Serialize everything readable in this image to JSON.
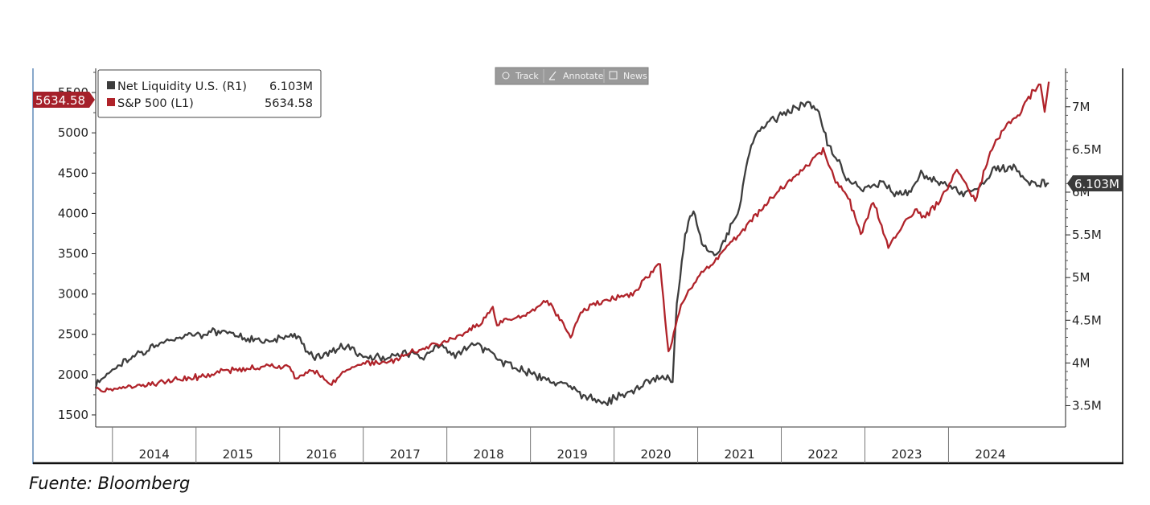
{
  "source_text": "Fuente: Bloomberg",
  "toolbar": {
    "track": "Track",
    "annotate": "Annotate",
    "news": "News"
  },
  "flags": {
    "left_value": "5634.58",
    "right_value": "6.103M"
  },
  "colors": {
    "liquidity": "#3d3d3d",
    "spx": "#b0232a",
    "axis": "#2a2a2a"
  },
  "chart_data": {
    "type": "line",
    "grid": false,
    "legend_position": "top-left",
    "x_axis": {
      "tick_labels": [
        "2014",
        "2015",
        "2016",
        "2017",
        "2018",
        "2019",
        "2020",
        "2021",
        "2022",
        "2023",
        "2024"
      ],
      "range": [
        2013.3,
        2024.9
      ]
    },
    "y_left": {
      "tick_labels": [
        "1500",
        "2000",
        "2500",
        "3000",
        "3500",
        "4000",
        "4500",
        "5000",
        "5500"
      ],
      "range": [
        1350,
        5800
      ]
    },
    "y_right": {
      "tick_labels": [
        "3.5M",
        "4M",
        "4.5M",
        "5M",
        "5.5M",
        "6M",
        "6.5M",
        "7M"
      ],
      "range": [
        3.25,
        7.45
      ]
    },
    "series": [
      {
        "name": "Net Liquidity U.S. (R1)",
        "legend_value": "6.103M",
        "axis": "right",
        "color": "#3d3d3d",
        "points": [
          [
            2013.3,
            3.75
          ],
          [
            2013.5,
            3.9
          ],
          [
            2013.7,
            4.05
          ],
          [
            2014.0,
            4.2
          ],
          [
            2014.2,
            4.28
          ],
          [
            2014.5,
            4.32
          ],
          [
            2014.7,
            4.35
          ],
          [
            2014.9,
            4.38
          ],
          [
            2015.1,
            4.28
          ],
          [
            2015.4,
            4.25
          ],
          [
            2015.7,
            4.33
          ],
          [
            2015.9,
            4.05
          ],
          [
            2016.1,
            4.12
          ],
          [
            2016.3,
            4.2
          ],
          [
            2016.5,
            4.05
          ],
          [
            2016.8,
            4.08
          ],
          [
            2017.0,
            4.1
          ],
          [
            2017.2,
            4.05
          ],
          [
            2017.4,
            4.2
          ],
          [
            2017.6,
            4.1
          ],
          [
            2017.8,
            4.22
          ],
          [
            2018.0,
            4.15
          ],
          [
            2018.2,
            4.0
          ],
          [
            2018.5,
            3.88
          ],
          [
            2018.8,
            3.78
          ],
          [
            2019.0,
            3.68
          ],
          [
            2019.2,
            3.58
          ],
          [
            2019.4,
            3.55
          ],
          [
            2019.6,
            3.62
          ],
          [
            2019.8,
            3.7
          ],
          [
            2019.95,
            3.8
          ],
          [
            2020.1,
            3.82
          ],
          [
            2020.2,
            3.8
          ],
          [
            2020.25,
            4.7
          ],
          [
            2020.35,
            5.5
          ],
          [
            2020.45,
            5.8
          ],
          [
            2020.55,
            5.4
          ],
          [
            2020.7,
            5.25
          ],
          [
            2020.85,
            5.5
          ],
          [
            2021.0,
            5.8
          ],
          [
            2021.1,
            6.4
          ],
          [
            2021.2,
            6.7
          ],
          [
            2021.4,
            6.85
          ],
          [
            2021.6,
            6.95
          ],
          [
            2021.8,
            7.05
          ],
          [
            2021.95,
            6.95
          ],
          [
            2022.05,
            6.6
          ],
          [
            2022.15,
            6.4
          ],
          [
            2022.3,
            6.15
          ],
          [
            2022.5,
            6.05
          ],
          [
            2022.7,
            6.12
          ],
          [
            2022.9,
            5.95
          ],
          [
            2023.05,
            6.02
          ],
          [
            2023.15,
            6.22
          ],
          [
            2023.3,
            6.15
          ],
          [
            2023.5,
            6.08
          ],
          [
            2023.7,
            5.95
          ],
          [
            2023.9,
            6.1
          ],
          [
            2024.05,
            6.25
          ],
          [
            2024.3,
            6.3
          ],
          [
            2024.45,
            6.12
          ],
          [
            2024.6,
            6.1
          ],
          [
            2024.7,
            6.103
          ]
        ]
      },
      {
        "name": "S&P 500 (L1)",
        "legend_value": "5634.58",
        "axis": "left",
        "color": "#b0232a",
        "points": [
          [
            2013.3,
            1790
          ],
          [
            2013.5,
            1820
          ],
          [
            2013.8,
            1860
          ],
          [
            2014.0,
            1885
          ],
          [
            2014.3,
            1940
          ],
          [
            2014.6,
            1985
          ],
          [
            2014.8,
            2040
          ],
          [
            2015.0,
            2060
          ],
          [
            2015.3,
            2095
          ],
          [
            2015.6,
            2090
          ],
          [
            2015.7,
            1940
          ],
          [
            2015.9,
            2050
          ],
          [
            2016.1,
            1890
          ],
          [
            2016.3,
            2060
          ],
          [
            2016.5,
            2140
          ],
          [
            2016.8,
            2150
          ],
          [
            2016.9,
            2190
          ],
          [
            2017.0,
            2250
          ],
          [
            2017.3,
            2360
          ],
          [
            2017.6,
            2450
          ],
          [
            2017.9,
            2640
          ],
          [
            2018.05,
            2820
          ],
          [
            2018.1,
            2650
          ],
          [
            2018.4,
            2720
          ],
          [
            2018.7,
            2910
          ],
          [
            2018.85,
            2700
          ],
          [
            2018.98,
            2450
          ],
          [
            2019.1,
            2780
          ],
          [
            2019.3,
            2890
          ],
          [
            2019.5,
            2960
          ],
          [
            2019.7,
            2990
          ],
          [
            2019.9,
            3210
          ],
          [
            2020.05,
            3380
          ],
          [
            2020.15,
            2250
          ],
          [
            2020.3,
            2850
          ],
          [
            2020.5,
            3200
          ],
          [
            2020.7,
            3400
          ],
          [
            2020.85,
            3600
          ],
          [
            2021.0,
            3750
          ],
          [
            2021.3,
            4100
          ],
          [
            2021.6,
            4400
          ],
          [
            2021.9,
            4700
          ],
          [
            2022.0,
            4790
          ],
          [
            2022.15,
            4400
          ],
          [
            2022.3,
            4200
          ],
          [
            2022.45,
            3750
          ],
          [
            2022.6,
            4150
          ],
          [
            2022.78,
            3600
          ],
          [
            2022.95,
            3850
          ],
          [
            2023.1,
            4050
          ],
          [
            2023.2,
            3950
          ],
          [
            2023.4,
            4150
          ],
          [
            2023.6,
            4550
          ],
          [
            2023.82,
            4150
          ],
          [
            2024.0,
            4780
          ],
          [
            2024.2,
            5100
          ],
          [
            2024.35,
            5250
          ],
          [
            2024.5,
            5500
          ],
          [
            2024.6,
            5610
          ],
          [
            2024.65,
            5250
          ],
          [
            2024.7,
            5634.58
          ]
        ]
      }
    ]
  }
}
